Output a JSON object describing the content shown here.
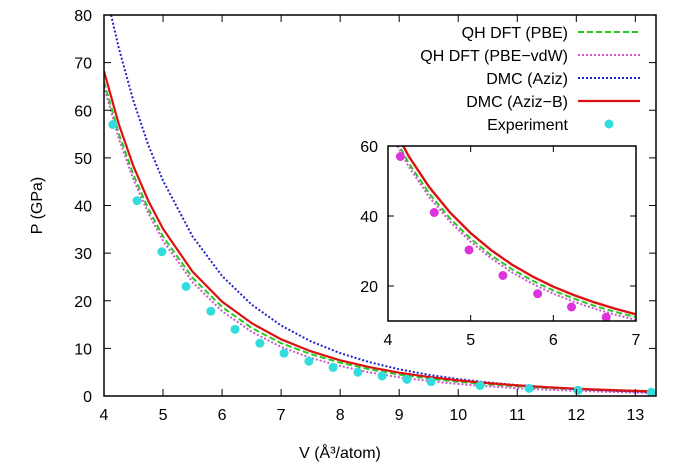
{
  "chart_data": [
    {
      "type": "line",
      "xlabel": "V (Å³/atom)",
      "ylabel": "P (GPa)",
      "xlim": [
        4,
        13.35
      ],
      "ylim": [
        0,
        80
      ],
      "xticks": [
        4,
        5,
        6,
        7,
        8,
        9,
        10,
        11,
        12,
        13
      ],
      "yticks": [
        0,
        10,
        20,
        30,
        40,
        50,
        60,
        70,
        80
      ],
      "legend_position": "top-right",
      "grid": false,
      "series": [
        {
          "name": "QH DFT (PBE)",
          "style": "dashed",
          "color": "#22cc22",
          "x": [
            4.0,
            4.25,
            4.5,
            4.75,
            5.0,
            5.5,
            6.0,
            6.5,
            7.0,
            7.5,
            8.0,
            8.5,
            9.0,
            9.5,
            10.0,
            10.5,
            11.0,
            11.5,
            12.0,
            12.5,
            13.0,
            13.3
          ],
          "y": [
            66.0,
            55.1,
            46.4,
            39.3,
            33.5,
            24.8,
            18.7,
            14.3,
            11.1,
            8.8,
            7.0,
            5.6,
            4.5,
            3.66,
            2.99,
            2.46,
            2.03,
            1.68,
            1.4,
            1.17,
            0.98,
            0.88
          ]
        },
        {
          "name": "QH DFT (PBE−vdW)",
          "style": "dotted",
          "color": "#cc55cc",
          "x": [
            4.0,
            4.25,
            4.5,
            4.75,
            5.0,
            5.5,
            6.0,
            6.5,
            7.0,
            7.5,
            8.0,
            8.5,
            9.0,
            9.5,
            10.0,
            10.5,
            11.0,
            11.5,
            12.0,
            12.5,
            13.0,
            13.3
          ],
          "y": [
            65.0,
            54.1,
            45.4,
            38.4,
            32.6,
            23.9,
            17.8,
            13.5,
            10.3,
            8.0,
            6.3,
            4.95,
            3.93,
            3.14,
            2.52,
            2.03,
            1.64,
            1.33,
            1.08,
            0.88,
            0.71,
            0.62
          ]
        },
        {
          "name": "DMC (Aziz)",
          "style": "dotted",
          "color": "#2222cc",
          "x": [
            4.12,
            4.25,
            4.5,
            4.75,
            5.0,
            5.5,
            6.0,
            6.5,
            7.0,
            7.5,
            8.0,
            8.5,
            9.0,
            9.5,
            10.0,
            10.5,
            11.0,
            11.5,
            12.0,
            12.5,
            13.0,
            13.3
          ],
          "y": [
            80.0,
            73.1,
            61.9,
            52.7,
            45.2,
            33.5,
            25.2,
            19.2,
            14.8,
            11.5,
            9.0,
            7.1,
            5.6,
            4.45,
            3.55,
            2.84,
            2.28,
            1.83,
            1.47,
            1.18,
            0.95,
            0.83
          ]
        },
        {
          "name": "DMC (Aziz−B)",
          "style": "solid",
          "color": "#dd1111",
          "x": [
            4.0,
            4.25,
            4.5,
            4.75,
            5.0,
            5.5,
            6.0,
            6.5,
            7.0,
            7.5,
            8.0,
            8.5,
            9.0,
            9.5,
            10.0,
            10.5,
            11.0,
            11.5,
            12.0,
            12.5,
            13.0,
            13.3
          ],
          "y": [
            68.2,
            57.1,
            48.2,
            41.0,
            35.1,
            26.1,
            19.8,
            15.3,
            11.9,
            9.4,
            7.5,
            6.05,
            4.9,
            4.0,
            3.28,
            2.7,
            2.23,
            1.85,
            1.54,
            1.29,
            1.08,
            0.97
          ]
        },
        {
          "name": "Experiment",
          "style": "points",
          "color": "#33dddd",
          "x": [
            4.15,
            4.56,
            4.98,
            5.39,
            5.81,
            6.22,
            6.64,
            7.05,
            7.47,
            7.88,
            8.3,
            8.71,
            9.13,
            9.54,
            10.37,
            11.2,
            12.03,
            13.27
          ],
          "y": [
            57.0,
            41.0,
            30.3,
            23.0,
            17.8,
            14.0,
            11.1,
            9.0,
            7.3,
            6.0,
            5.0,
            4.2,
            3.5,
            3.0,
            2.2,
            1.6,
            1.2,
            0.8
          ]
        }
      ]
    },
    {
      "type": "line",
      "role": "inset",
      "xlim": [
        4,
        7
      ],
      "ylim": [
        10,
        60
      ],
      "xticks": [
        4,
        5,
        6,
        7
      ],
      "yticks": [
        20,
        40,
        60
      ],
      "series": [
        {
          "name": "QH DFT (PBE)",
          "style": "dashed",
          "color": "#22cc22",
          "x": [
            4.0,
            4.25,
            4.5,
            4.75,
            5.0,
            5.25,
            5.5,
            5.75,
            6.0,
            6.25,
            6.5,
            6.75,
            7.0
          ],
          "y": [
            66.0,
            55.1,
            46.4,
            39.3,
            33.5,
            28.7,
            24.8,
            21.5,
            18.7,
            16.4,
            14.3,
            12.6,
            11.1
          ]
        },
        {
          "name": "QH DFT (PBE−vdW)",
          "style": "dotted",
          "color": "#cc55cc",
          "x": [
            4.0,
            4.25,
            4.5,
            4.75,
            5.0,
            5.25,
            5.5,
            5.75,
            6.0,
            6.25,
            6.5,
            6.75,
            7.0
          ],
          "y": [
            65.0,
            54.1,
            45.4,
            38.4,
            32.6,
            27.9,
            23.9,
            20.6,
            17.8,
            15.5,
            13.5,
            11.8,
            10.3
          ]
        },
        {
          "name": "DMC (Aziz−B)",
          "style": "solid",
          "color": "#dd1111",
          "x": [
            4.0,
            4.25,
            4.5,
            4.75,
            5.0,
            5.25,
            5.5,
            5.75,
            6.0,
            6.25,
            6.5,
            6.75,
            7.0
          ],
          "y": [
            68.2,
            57.1,
            48.2,
            41.0,
            35.1,
            30.2,
            26.1,
            22.7,
            19.8,
            17.4,
            15.3,
            13.5,
            11.9
          ]
        },
        {
          "name": "Experiment",
          "style": "points",
          "color": "#dd33dd",
          "x": [
            4.15,
            4.56,
            4.98,
            5.39,
            5.81,
            6.22,
            6.64
          ],
          "y": [
            57.0,
            41.0,
            30.3,
            23.0,
            17.8,
            14.0,
            11.1
          ]
        }
      ]
    }
  ]
}
